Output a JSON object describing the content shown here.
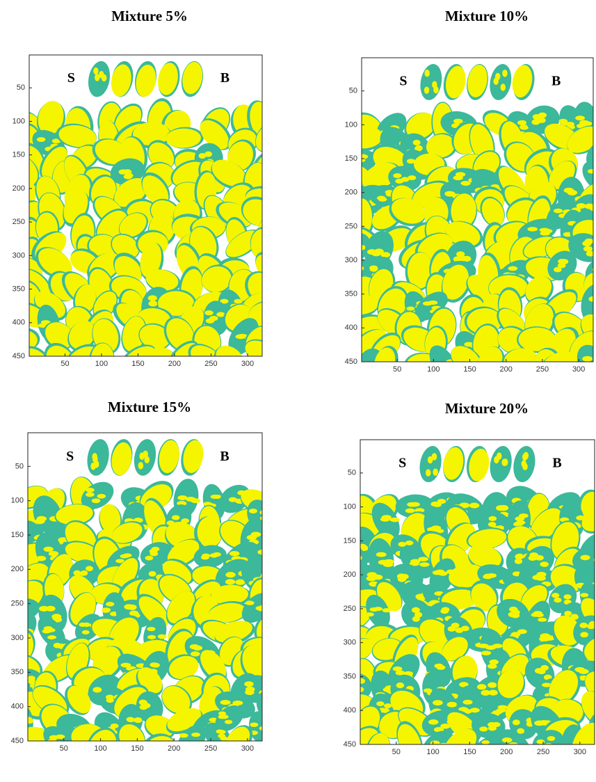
{
  "chart_data": [
    {
      "type": "image",
      "title": "Mixture 5%",
      "annotations": [
        "S",
        "B"
      ],
      "colors": [
        "#f5f500",
        "#3cb89a"
      ],
      "xlim": [
        1,
        320
      ],
      "ylim": [
        450,
        1
      ],
      "xticks": [
        50,
        100,
        150,
        200,
        250,
        300
      ],
      "yticks": [
        50,
        100,
        150,
        200,
        250,
        300,
        350,
        400,
        450
      ]
    },
    {
      "type": "image",
      "title": "Mixture 10%",
      "annotations": [
        "S",
        "B"
      ],
      "colors": [
        "#f5f500",
        "#3cb89a"
      ],
      "xlim": [
        1,
        320
      ],
      "ylim": [
        450,
        1
      ],
      "xticks": [
        50,
        100,
        150,
        200,
        250,
        300
      ],
      "yticks": [
        50,
        100,
        150,
        200,
        250,
        300,
        350,
        400,
        450
      ]
    },
    {
      "type": "image",
      "title": "Mixture 15%",
      "annotations": [
        "S",
        "B"
      ],
      "colors": [
        "#f5f500",
        "#3cb89a"
      ],
      "xlim": [
        1,
        320
      ],
      "ylim": [
        450,
        1
      ],
      "xticks": [
        50,
        100,
        150,
        200,
        250,
        300
      ],
      "yticks": [
        50,
        100,
        150,
        200,
        250,
        300,
        350,
        400,
        450
      ]
    },
    {
      "type": "image",
      "title": "Mixture 20%",
      "annotations": [
        "S",
        "B"
      ],
      "colors": [
        "#f5f500",
        "#3cb89a"
      ],
      "xlim": [
        1,
        320
      ],
      "ylim": [
        450,
        1
      ],
      "xticks": [
        50,
        100,
        150,
        200,
        250,
        300
      ],
      "yticks": [
        50,
        100,
        150,
        200,
        250,
        300,
        350,
        400,
        450
      ]
    }
  ]
}
